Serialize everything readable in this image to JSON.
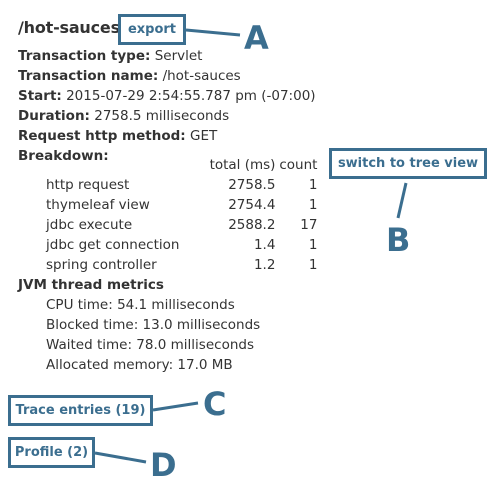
{
  "header": {
    "title": "/hot-sauces",
    "export_label": "export"
  },
  "details": {
    "transaction_type": {
      "label": "Transaction type:",
      "value": "Servlet"
    },
    "transaction_name": {
      "label": "Transaction name:",
      "value": "/hot-sauces"
    },
    "start": {
      "label": "Start:",
      "value": "2015-07-29 2:54:55.787 pm (-07:00)"
    },
    "duration": {
      "label": "Duration:",
      "value": "2758.5 milliseconds"
    },
    "request_method": {
      "label": "Request http method:",
      "value": "GET"
    }
  },
  "breakdown": {
    "label": "Breakdown:",
    "col_total": "total (ms)",
    "col_count": "count",
    "switch_label": "switch to tree view",
    "rows": [
      {
        "name": "http request",
        "total": "2758.5",
        "count": "1"
      },
      {
        "name": "thymeleaf view",
        "total": "2754.4",
        "count": "1"
      },
      {
        "name": "jdbc execute",
        "total": "2588.2",
        "count": "17"
      },
      {
        "name": "jdbc get connection",
        "total": "1.4",
        "count": "1"
      },
      {
        "name": "spring controller",
        "total": "1.2",
        "count": "1"
      }
    ]
  },
  "jvm": {
    "label": "JVM thread metrics",
    "cpu": "CPU time: 54.1 milliseconds",
    "blocked": "Blocked time: 13.0 milliseconds",
    "waited": "Waited time: 78.0 milliseconds",
    "allocated": "Allocated memory: 17.0 MB"
  },
  "sections": {
    "trace_label": "Trace entries (19)",
    "profile_label": "Profile (2)"
  },
  "callouts": {
    "a": "A",
    "b": "B",
    "c": "C",
    "d": "D"
  },
  "colors": {
    "accent": "#3b6e8f",
    "text": "#333333"
  }
}
